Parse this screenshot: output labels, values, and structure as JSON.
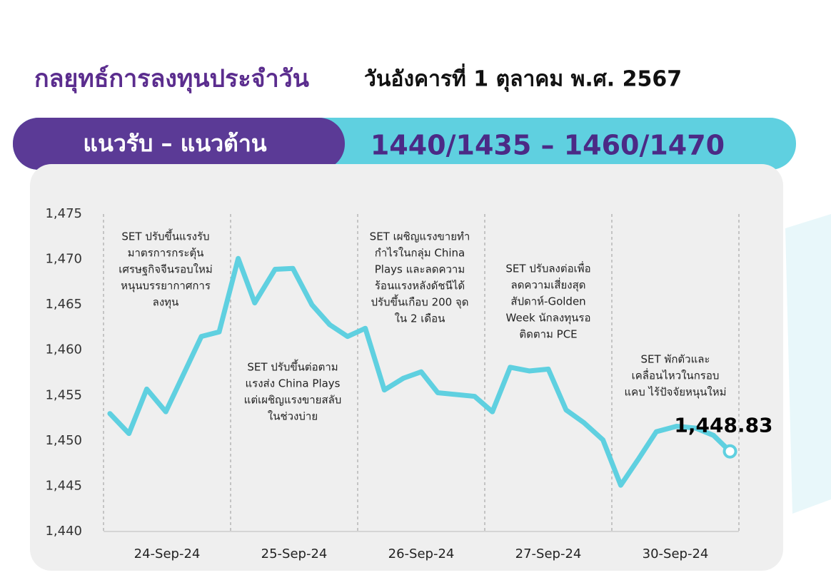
{
  "header": {
    "title": "กลยุทธ์การลงทุนประจำวัน",
    "date": "วันอังคารที่ 1 ตุลาคม พ.ศ. 2567"
  },
  "banner": {
    "label": "แนวรับ – แนวต้าน",
    "levels": "1440/1435 – 1460/1470"
  },
  "chart_data": {
    "type": "line",
    "x": [
      0.05,
      0.2,
      0.34,
      0.49,
      0.77,
      0.91,
      1.06,
      1.19,
      1.35,
      1.49,
      1.64,
      1.78,
      1.92,
      2.06,
      2.21,
      2.36,
      2.5,
      2.63,
      2.92,
      3.06,
      3.2,
      3.35,
      3.5,
      3.64,
      3.78,
      3.93,
      4.07,
      4.21,
      4.35,
      4.51,
      4.66,
      4.8,
      4.93
    ],
    "series": [
      {
        "color": "#5fd0e0",
        "values": [
          1453.0,
          1450.8,
          1455.7,
          1453.2,
          1461.5,
          1462.0,
          1470.1,
          1465.2,
          1468.9,
          1469.0,
          1465.0,
          1462.8,
          1461.5,
          1462.4,
          1455.6,
          1456.9,
          1457.6,
          1455.3,
          1454.9,
          1453.2,
          1458.1,
          1457.7,
          1457.9,
          1453.4,
          1452.0,
          1450.1,
          1445.1,
          1448.0,
          1451.0,
          1451.6,
          1451.4,
          1450.6,
          1448.83
        ],
        "value_labels": [
          null,
          null,
          null,
          null,
          null,
          null,
          null,
          null,
          null,
          null,
          null,
          null,
          null,
          null,
          null,
          null,
          null,
          null,
          null,
          null,
          null,
          null,
          null,
          null,
          null,
          null,
          null,
          null,
          null,
          null,
          null,
          null,
          "1,448.83"
        ]
      }
    ],
    "xlim": [
      0,
      5
    ],
    "xticks": [
      {
        "value": 0.5,
        "label": "24-Sep-24"
      },
      {
        "value": 1.5,
        "label": "25-Sep-24"
      },
      {
        "value": 2.5,
        "label": "26-Sep-24"
      },
      {
        "value": 3.5,
        "label": "27-Sep-24"
      },
      {
        "value": 4.5,
        "label": "30-Sep-24"
      }
    ],
    "ylim": [
      1440,
      1475
    ],
    "yticks": [
      {
        "value": 1440,
        "label": "1,440"
      },
      {
        "value": 1445,
        "label": "1,445"
      },
      {
        "value": 1450,
        "label": "1,450"
      },
      {
        "value": 1455,
        "label": "1,455"
      },
      {
        "value": 1460,
        "label": "1,460"
      },
      {
        "value": 1465,
        "label": "1,465"
      },
      {
        "value": 1470,
        "label": "1,470"
      },
      {
        "value": 1475,
        "label": "1,475"
      }
    ],
    "annotations": [
      [
        "SET ปรับขึ้นแรงรับ",
        "มาตรการกระตุ้น",
        "เศรษฐกิจจีนรอบใหม่",
        "หนุนบรรยากาศการ",
        "ลงทุน"
      ],
      [
        "SET ปรับขึ้นต่อตาม",
        "แรงส่ง China Plays",
        "แต่เผชิญแรงขายสลับ",
        "ในช่วงบ่าย"
      ],
      [
        "SET เผชิญแรงขายทำ",
        "กำไรในกลุ่ม China",
        "Plays และลดความ",
        "ร้อนแรงหลังดัชนีได้",
        "ปรับขึ้นเกือบ 200 จุด",
        "ใน 2 เดือน"
      ],
      [
        "SET ปรับลงต่อเพื่อ",
        "ลดความเสี่ยงสุด",
        "สัปดาห์-Golden",
        "Week นักลงทุนรอ",
        "ติดตาม PCE"
      ],
      [
        "SET พักตัวและ",
        "เคลื่อนไหวในกรอบ",
        "แคบ ไร้ปัจจัยหนุนใหม่"
      ]
    ]
  }
}
